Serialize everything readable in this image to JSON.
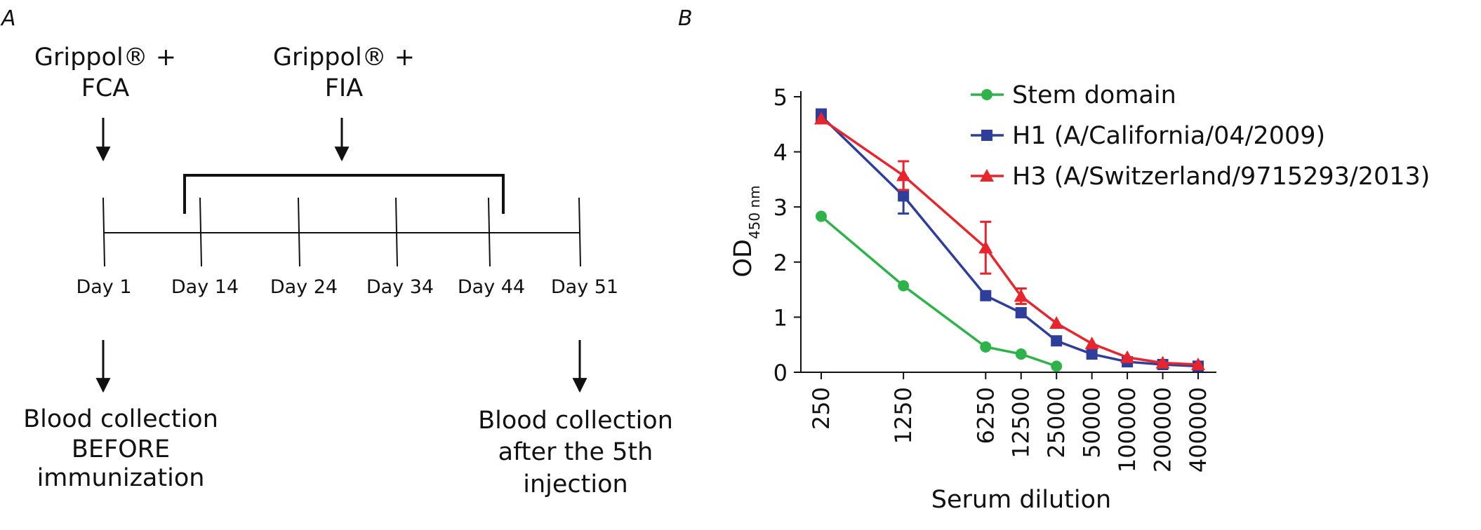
{
  "panel_a": {
    "letter": "A",
    "first_injection": {
      "line1": "Grippol® +",
      "line2": "FCA"
    },
    "booster_injections": {
      "line1": "Grippol® +",
      "line2": "FIA"
    },
    "days": [
      "Day 1",
      "Day 14",
      "Day 24",
      "Day 34",
      "Day 44",
      "Day 51"
    ],
    "blood_before": {
      "line1": "Blood collection",
      "line2": "BEFORE",
      "line3": "immunization"
    },
    "blood_after": {
      "line1": "Blood collection",
      "line2": "after the 5th",
      "line3": "injection"
    }
  },
  "panel_b": {
    "letter": "B"
  },
  "chart_data": {
    "type": "line",
    "xlabel": "Serum dilution",
    "ylabel_main": "OD",
    "ylabel_sub": "450 nm",
    "x_scale": "log",
    "categories": [
      "250",
      "1250",
      "6250",
      "12500",
      "25000",
      "50000",
      "100000",
      "200000",
      "400000"
    ],
    "x": [
      250,
      1250,
      6250,
      12500,
      25000,
      50000,
      100000,
      200000,
      400000
    ],
    "y_ticks": [
      "0",
      "1",
      "2",
      "3",
      "4",
      "5"
    ],
    "ylim": [
      0,
      5
    ],
    "legend_position": "top-right",
    "series": [
      {
        "name": "Stem domain",
        "color": "#2db34a",
        "marker": "circle",
        "values": [
          2.83,
          1.57,
          0.46,
          0.33,
          0.11,
          null,
          null,
          null,
          null
        ],
        "errors": [
          0,
          0,
          0,
          0,
          0,
          null,
          null,
          null,
          null
        ]
      },
      {
        "name": "H1 (A/California/04/2009)",
        "color": "#2e3e9b",
        "marker": "square",
        "values": [
          4.65,
          3.2,
          1.39,
          1.08,
          0.57,
          0.33,
          0.19,
          0.14,
          0.11
        ],
        "errors": [
          0.12,
          0.32,
          0,
          0.08,
          0,
          0,
          0,
          0,
          0
        ]
      },
      {
        "name": "H3 (A/Switzerland/9715293/2013)",
        "color": "#e8252c",
        "marker": "triangle",
        "values": [
          4.6,
          3.57,
          2.26,
          1.38,
          0.89,
          0.52,
          0.27,
          0.17,
          0.14
        ],
        "errors": [
          0,
          0.26,
          0.47,
          0.14,
          0,
          0,
          0,
          0,
          0
        ]
      }
    ]
  }
}
